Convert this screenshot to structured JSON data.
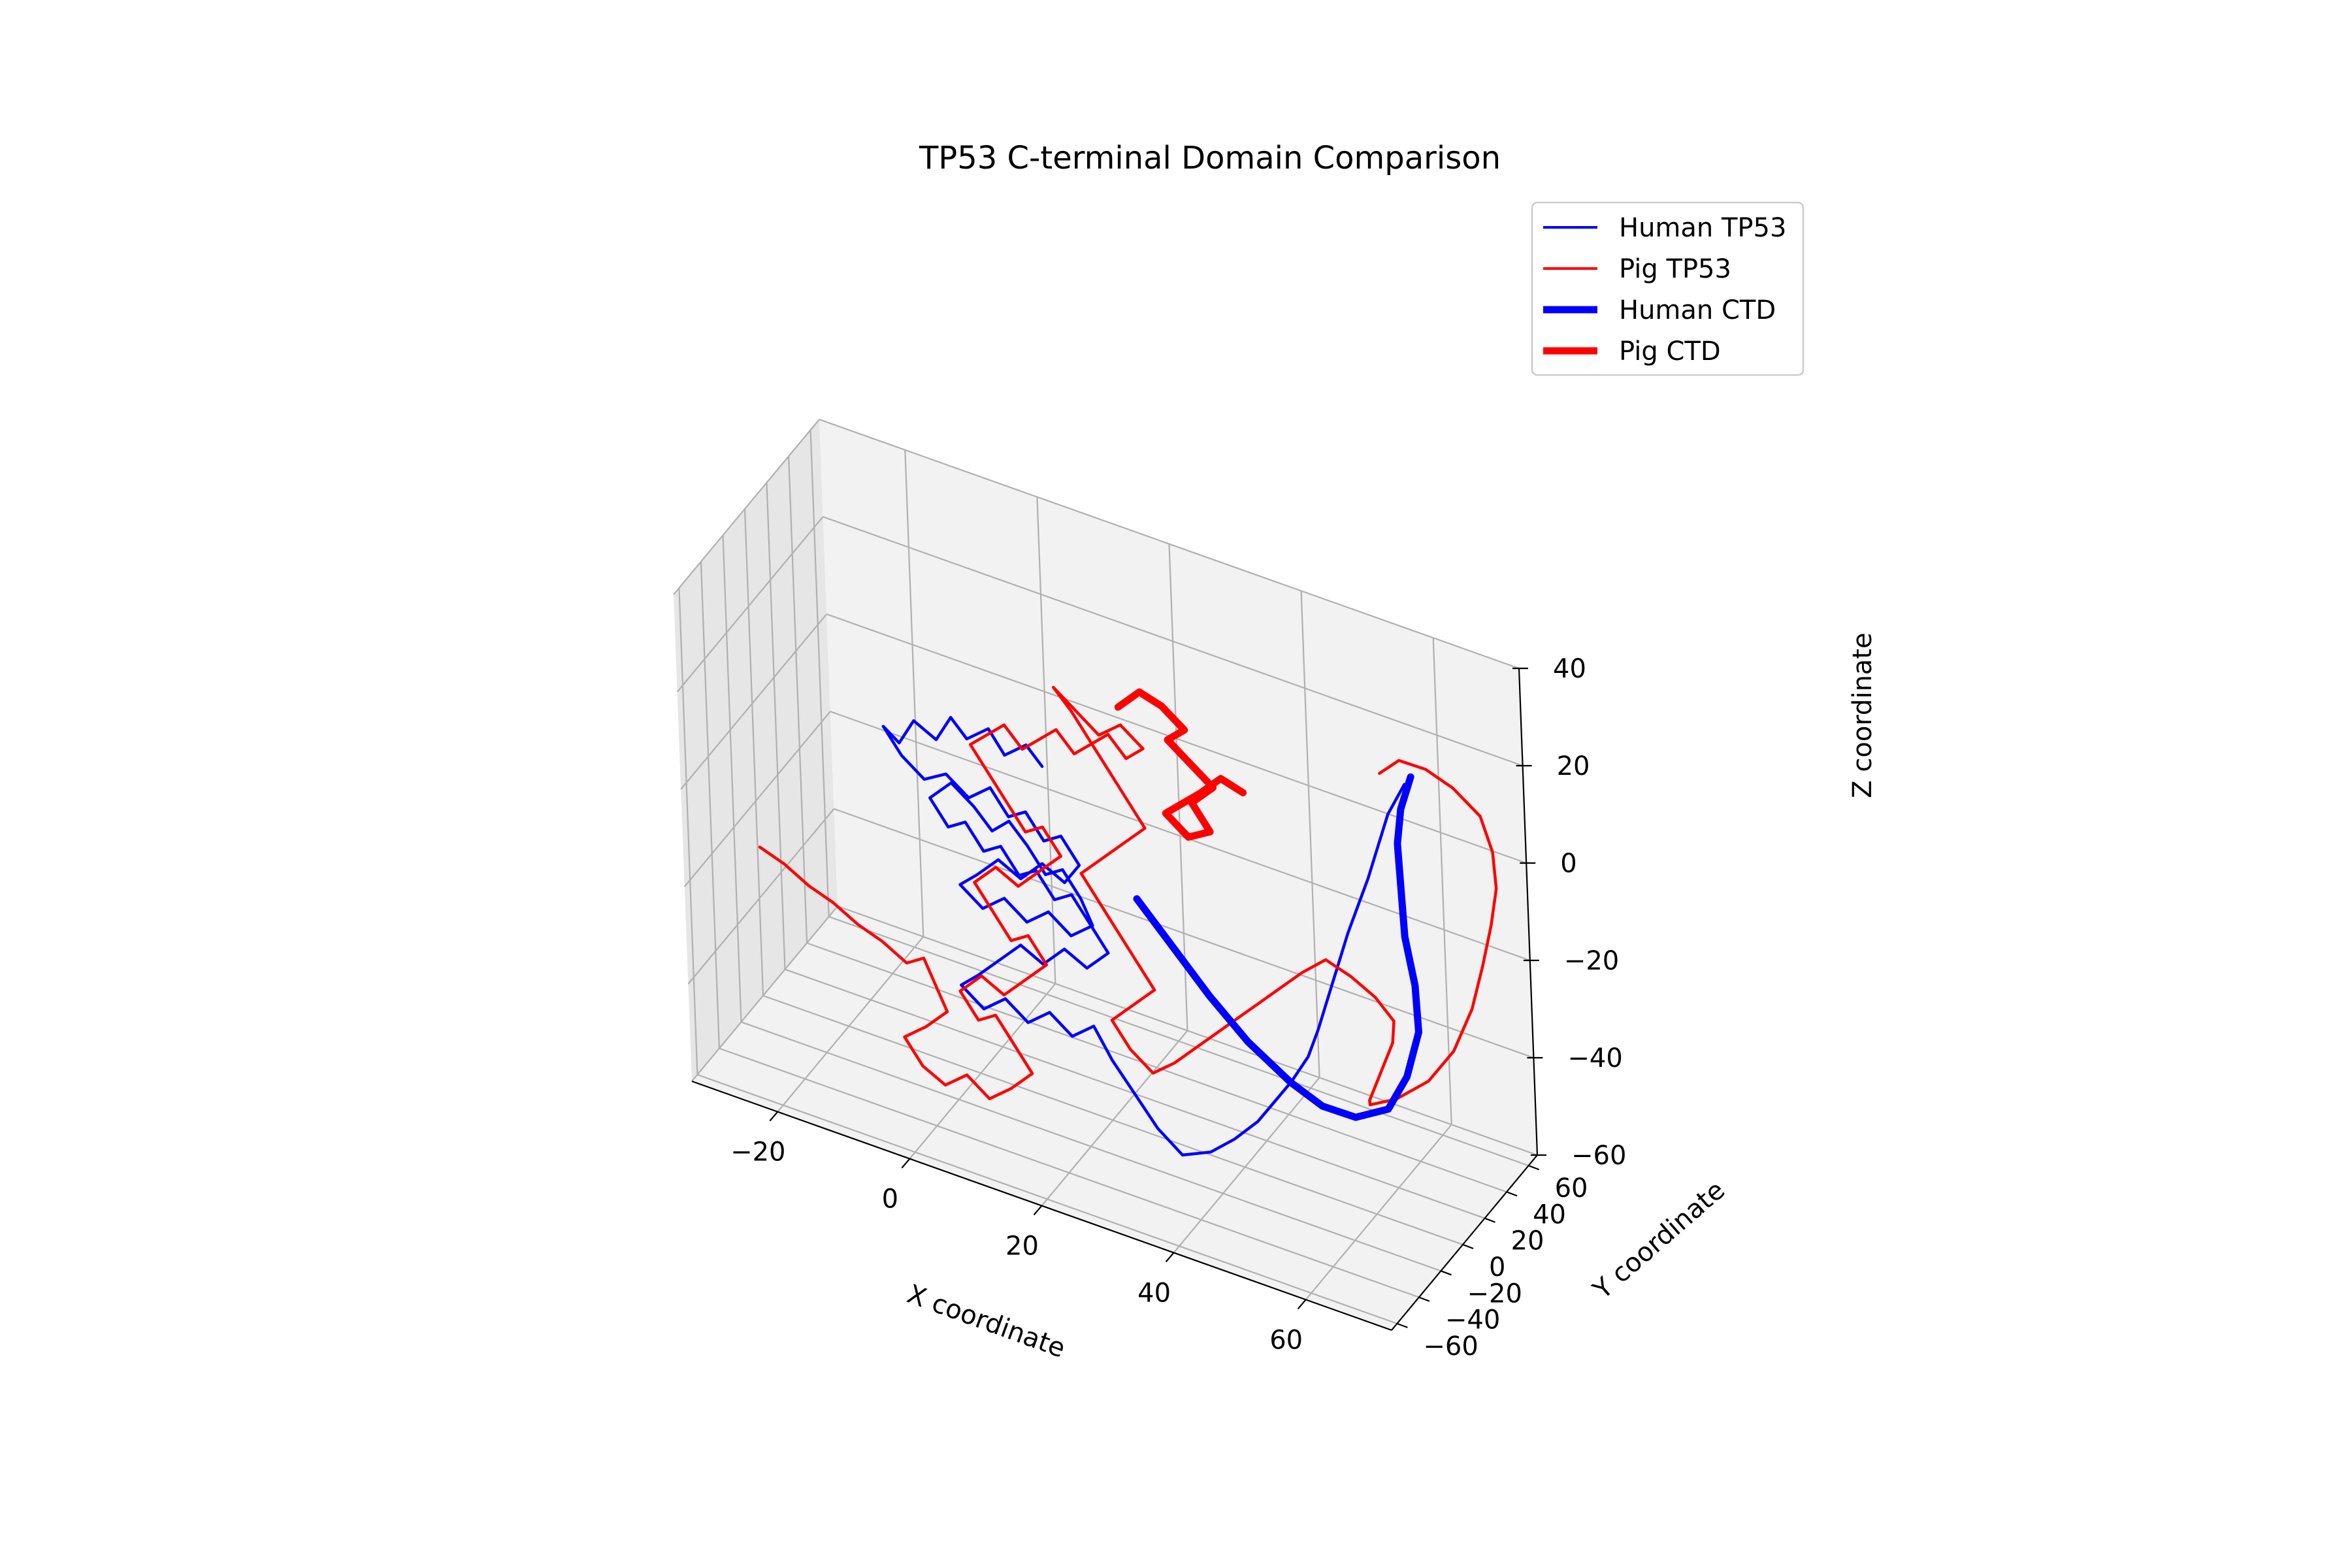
{
  "chart_data": {
    "type": "line",
    "projection": "3d",
    "title": "TP53 C-terminal Domain Comparison",
    "xlabel": "X coordinate",
    "ylabel": "Y coordinate",
    "zlabel": "Z coordinate",
    "xlim": [
      -33,
      73
    ],
    "ylim": [
      -65,
      68
    ],
    "zlim": [
      -60,
      40
    ],
    "xticks": [
      -20,
      0,
      20,
      40,
      60
    ],
    "yticks": [
      -60,
      -40,
      -20,
      0,
      20,
      40,
      60
    ],
    "zticks": [
      -60,
      -40,
      -20,
      0,
      20,
      40
    ],
    "xtick_labels": [
      "−20",
      "0",
      "20",
      "40",
      "60"
    ],
    "ytick_labels": [
      "−60",
      "−40",
      "−20",
      "0",
      "20",
      "40",
      "60"
    ],
    "ztick_labels": [
      "−60",
      "−40",
      "−20",
      "0",
      "20",
      "40"
    ],
    "grid": true,
    "legend": {
      "position": "top-right"
    },
    "colors": {
      "human": "#0000ff",
      "pig": "#ff0000"
    },
    "series": [
      {
        "name": "Human TP53",
        "color": "#0000ff",
        "linewidth": "thin",
        "points": [
          [
            8,
            18,
            2
          ],
          [
            6,
            16,
            6
          ],
          [
            3,
            14,
            3
          ],
          [
            1,
            12,
            8
          ],
          [
            -2,
            10,
            5
          ],
          [
            -4,
            8,
            9
          ],
          [
            -6,
            6,
            4
          ],
          [
            -9,
            4,
            7
          ],
          [
            -11,
            2,
            2
          ],
          [
            -13,
            0,
            5
          ],
          [
            -10,
            -2,
            1
          ],
          [
            -7,
            0,
            -3
          ],
          [
            -4,
            2,
            -1
          ],
          [
            -1,
            4,
            -5
          ],
          [
            2,
            6,
            -2
          ],
          [
            5,
            4,
            -6
          ],
          [
            8,
            2,
            -3
          ],
          [
            11,
            0,
            -7
          ],
          [
            14,
            -2,
            -4
          ],
          [
            17,
            -4,
            -8
          ],
          [
            15,
            -6,
            -12
          ],
          [
            12,
            -8,
            -9
          ],
          [
            9,
            -10,
            -13
          ],
          [
            6,
            -12,
            -10
          ],
          [
            3,
            -14,
            -14
          ],
          [
            0,
            -12,
            -18
          ],
          [
            3,
            -10,
            -22
          ],
          [
            6,
            -8,
            -19
          ],
          [
            9,
            -6,
            -23
          ],
          [
            12,
            -4,
            -20
          ],
          [
            15,
            -2,
            -24
          ],
          [
            18,
            0,
            -21
          ],
          [
            16,
            2,
            -17
          ],
          [
            13,
            4,
            -13
          ],
          [
            10,
            6,
            -16
          ],
          [
            7,
            8,
            -12
          ],
          [
            4,
            10,
            -9
          ],
          [
            1,
            12,
            -13
          ],
          [
            -2,
            14,
            -10
          ],
          [
            -5,
            12,
            -6
          ],
          [
            -8,
            10,
            -10
          ],
          [
            -5,
            8,
            -14
          ],
          [
            -2,
            6,
            -11
          ],
          [
            1,
            4,
            -15
          ],
          [
            4,
            2,
            -12
          ],
          [
            7,
            0,
            -16
          ],
          [
            10,
            -2,
            -13
          ],
          [
            13,
            -4,
            -17
          ],
          [
            16,
            -6,
            -14
          ],
          [
            19,
            -8,
            -18
          ],
          [
            22,
            -10,
            -22
          ],
          [
            19,
            -12,
            -26
          ],
          [
            16,
            -14,
            -23
          ],
          [
            13,
            -16,
            -27
          ],
          [
            10,
            -18,
            -24
          ],
          [
            7,
            -20,
            -28
          ],
          [
            4,
            -22,
            -32
          ],
          [
            1,
            -20,
            -36
          ],
          [
            4,
            -18,
            -40
          ],
          [
            7,
            -16,
            -37
          ],
          [
            10,
            -14,
            -41
          ],
          [
            13,
            -12,
            -38
          ],
          [
            16,
            -10,
            -42
          ],
          [
            19,
            -8,
            -39
          ],
          [
            22,
            -10,
            -44
          ],
          [
            26,
            -14,
            -48
          ],
          [
            30,
            -18,
            -52
          ],
          [
            34,
            -20,
            -55
          ],
          [
            38,
            -18,
            -53
          ],
          [
            41,
            -14,
            -50
          ],
          [
            44,
            -10,
            -46
          ],
          [
            46,
            -6,
            -42
          ],
          [
            48,
            -2,
            -38
          ],
          [
            50,
            2,
            -33
          ],
          [
            51,
            6,
            -28
          ],
          [
            52,
            10,
            -22
          ],
          [
            53,
            14,
            -16
          ],
          [
            54,
            18,
            -10
          ],
          [
            55,
            22,
            -5
          ],
          [
            56,
            26,
            0
          ],
          [
            57,
            30,
            6
          ],
          [
            58,
            34,
            12
          ],
          [
            60,
            38,
            18
          ]
        ]
      },
      {
        "name": "Pig TP53",
        "color": "#ff0000",
        "linewidth": "thin",
        "points": [
          [
            -33,
            2,
            -30
          ],
          [
            -29,
            0,
            -31
          ],
          [
            -25,
            -2,
            -33
          ],
          [
            -21,
            -4,
            -34
          ],
          [
            -17,
            -6,
            -36
          ],
          [
            -13,
            -8,
            -37
          ],
          [
            -9,
            -10,
            -39
          ],
          [
            -6,
            -12,
            -36
          ],
          [
            -4,
            -14,
            -40
          ],
          [
            -2,
            -16,
            -44
          ],
          [
            -5,
            -18,
            -48
          ],
          [
            -8,
            -20,
            -51
          ],
          [
            -5,
            -22,
            -55
          ],
          [
            -2,
            -20,
            -58
          ],
          [
            1,
            -18,
            -55
          ],
          [
            4,
            -16,
            -59
          ],
          [
            7,
            -14,
            -56
          ],
          [
            10,
            -12,
            -52
          ],
          [
            7,
            -10,
            -48
          ],
          [
            4,
            -8,
            -44
          ],
          [
            1,
            -6,
            -47
          ],
          [
            -2,
            -4,
            -43
          ],
          [
            1,
            -2,
            -39
          ],
          [
            4,
            0,
            -42
          ],
          [
            7,
            2,
            -38
          ],
          [
            10,
            4,
            -34
          ],
          [
            7,
            6,
            -30
          ],
          [
            4,
            8,
            -33
          ],
          [
            1,
            10,
            -29
          ],
          [
            -2,
            12,
            -25
          ],
          [
            1,
            14,
            -21
          ],
          [
            4,
            16,
            -24
          ],
          [
            7,
            18,
            -20
          ],
          [
            10,
            20,
            -16
          ],
          [
            7,
            22,
            -12
          ],
          [
            4,
            24,
            -15
          ],
          [
            1,
            26,
            -11
          ],
          [
            -2,
            28,
            -7
          ],
          [
            -5,
            30,
            -3
          ],
          [
            -2,
            28,
            1
          ],
          [
            1,
            26,
            5
          ],
          [
            4,
            24,
            2
          ],
          [
            7,
            22,
            6
          ],
          [
            10,
            20,
            10
          ],
          [
            13,
            18,
            7
          ],
          [
            16,
            16,
            11
          ],
          [
            19,
            14,
            15
          ],
          [
            22,
            12,
            12
          ],
          [
            25,
            10,
            16
          ],
          [
            22,
            8,
            20
          ],
          [
            19,
            6,
            17
          ],
          [
            16,
            4,
            21
          ],
          [
            13,
            2,
            25
          ],
          [
            16,
            0,
            22
          ],
          [
            19,
            -2,
            18
          ],
          [
            22,
            -4,
            14
          ],
          [
            25,
            -6,
            10
          ],
          [
            28,
            -8,
            6
          ],
          [
            25,
            -10,
            2
          ],
          [
            22,
            -12,
            -2
          ],
          [
            19,
            -14,
            -6
          ],
          [
            22,
            -16,
            -10
          ],
          [
            25,
            -18,
            -14
          ],
          [
            28,
            -20,
            -18
          ],
          [
            31,
            -22,
            -22
          ],
          [
            28,
            -24,
            -26
          ],
          [
            25,
            -26,
            -30
          ],
          [
            28,
            -28,
            -34
          ],
          [
            31,
            -26,
            -38
          ],
          [
            34,
            -24,
            -35
          ],
          [
            37,
            -22,
            -31
          ],
          [
            40,
            -20,
            -27
          ],
          [
            43,
            -18,
            -23
          ],
          [
            46,
            -16,
            -19
          ],
          [
            49,
            -14,
            -15
          ],
          [
            52,
            -12,
            -11
          ],
          [
            55,
            -8,
            -8
          ],
          [
            58,
            -4,
            -11
          ],
          [
            61,
            0,
            -15
          ],
          [
            63,
            4,
            -20
          ],
          [
            62,
            8,
            -26
          ],
          [
            60,
            12,
            -32
          ],
          [
            58,
            16,
            -38
          ],
          [
            56,
            20,
            -44
          ],
          [
            55,
            26,
            -47
          ],
          [
            58,
            32,
            -46
          ],
          [
            62,
            38,
            -42
          ],
          [
            65,
            44,
            -36
          ],
          [
            67,
            50,
            -28
          ],
          [
            68,
            55,
            -20
          ],
          [
            69,
            58,
            -12
          ],
          [
            70,
            58,
            -4
          ],
          [
            70,
            56,
            4
          ],
          [
            69,
            52,
            12
          ],
          [
            66,
            46,
            18
          ],
          [
            63,
            40,
            22
          ],
          [
            60,
            34,
            24
          ],
          [
            58,
            28,
            22
          ]
        ]
      },
      {
        "name": "Human CTD",
        "color": "#0000ff",
        "linewidth": "thick",
        "points": [
          [
            26,
            -6,
            -10
          ],
          [
            32,
            -10,
            -16
          ],
          [
            38,
            -14,
            -22
          ],
          [
            44,
            -16,
            -28
          ],
          [
            50,
            -14,
            -34
          ],
          [
            54,
            -10,
            -38
          ],
          [
            58,
            -4,
            -40
          ],
          [
            62,
            2,
            -38
          ],
          [
            64,
            8,
            -32
          ],
          [
            65,
            14,
            -24
          ],
          [
            64,
            18,
            -16
          ],
          [
            62,
            22,
            -8
          ],
          [
            61,
            26,
            0
          ],
          [
            60,
            30,
            8
          ],
          [
            60,
            34,
            14
          ],
          [
            61,
            38,
            20
          ]
        ]
      },
      {
        "name": "Pig CTD",
        "color": "#ff0000",
        "linewidth": "thick",
        "points": [
          [
            20,
            18,
            20
          ],
          [
            23,
            20,
            24
          ],
          [
            26,
            22,
            22
          ],
          [
            29,
            24,
            18
          ],
          [
            26,
            26,
            14
          ],
          [
            29,
            28,
            10
          ],
          [
            32,
            30,
            6
          ],
          [
            29,
            28,
            2
          ],
          [
            32,
            26,
            -2
          ],
          [
            29,
            24,
            -4
          ],
          [
            26,
            22,
            0
          ],
          [
            29,
            20,
            4
          ],
          [
            32,
            18,
            8
          ],
          [
            35,
            20,
            12
          ],
          [
            38,
            22,
            10
          ]
        ]
      }
    ]
  }
}
